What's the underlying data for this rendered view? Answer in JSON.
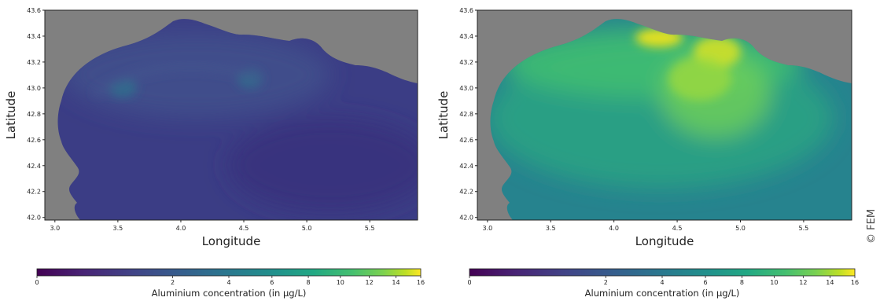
{
  "credit": "© FEM",
  "colors": {
    "land": "#808080",
    "colormap": [
      "#440154",
      "#472c7a",
      "#3b518b",
      "#2c718e",
      "#21908d",
      "#27ad81",
      "#5cc863",
      "#aadc32",
      "#fde725"
    ]
  },
  "chart_data": [
    {
      "type": "heatmap",
      "title": "",
      "xlabel": "Longitude",
      "ylabel": "Latitude",
      "xlim": [
        2.92,
        5.88
      ],
      "ylim": [
        41.98,
        43.6
      ],
      "xticks": [
        "3.0",
        "3.5",
        "4.0",
        "4.5",
        "5.0",
        "5.5"
      ],
      "yticks": [
        "42.0",
        "42.2",
        "42.4",
        "42.6",
        "42.8",
        "43.0",
        "43.2",
        "43.4",
        "43.6"
      ],
      "colorbar": {
        "label": "Aluminium concentration (in µg/L)",
        "ticks": [
          "0",
          "2",
          "4",
          "6",
          "8",
          "10",
          "12",
          "14",
          "16"
        ],
        "tick_values": [
          0,
          2,
          4,
          6,
          8,
          10,
          12,
          14,
          16
        ],
        "scale": "sqrt"
      },
      "background_value": 0.5,
      "hotspots": [
        {
          "lon": 3.55,
          "lat": 43.0,
          "value": 1.5
        },
        {
          "lon": 4.6,
          "lat": 43.1,
          "value": 1.7
        }
      ]
    },
    {
      "type": "heatmap",
      "title": "",
      "xlabel": "Longitude",
      "ylabel": "Latitude",
      "xlim": [
        2.92,
        5.88
      ],
      "ylim": [
        41.98,
        43.6
      ],
      "xticks": [
        "3.0",
        "3.5",
        "4.0",
        "4.5",
        "5.0",
        "5.5"
      ],
      "yticks": [
        "42.0",
        "42.2",
        "42.4",
        "42.6",
        "42.8",
        "43.0",
        "43.2",
        "43.4",
        "43.6"
      ],
      "colorbar": {
        "label": "Aluminium concentration (in µg/L)",
        "ticks": [
          "0",
          "2",
          "4",
          "6",
          "8",
          "10",
          "12",
          "14",
          "16"
        ],
        "tick_values": [
          0,
          2,
          4,
          6,
          8,
          10,
          12,
          14,
          16
        ],
        "scale": "sqrt"
      },
      "background_value": 3,
      "hotspots": [
        {
          "lon": 4.4,
          "lat": 43.42,
          "value": 14
        },
        {
          "lon": 4.82,
          "lat": 43.3,
          "value": 12
        },
        {
          "lon": 4.6,
          "lat": 43.05,
          "value": 7
        },
        {
          "lon": 3.9,
          "lat": 43.3,
          "value": 6
        }
      ]
    }
  ]
}
